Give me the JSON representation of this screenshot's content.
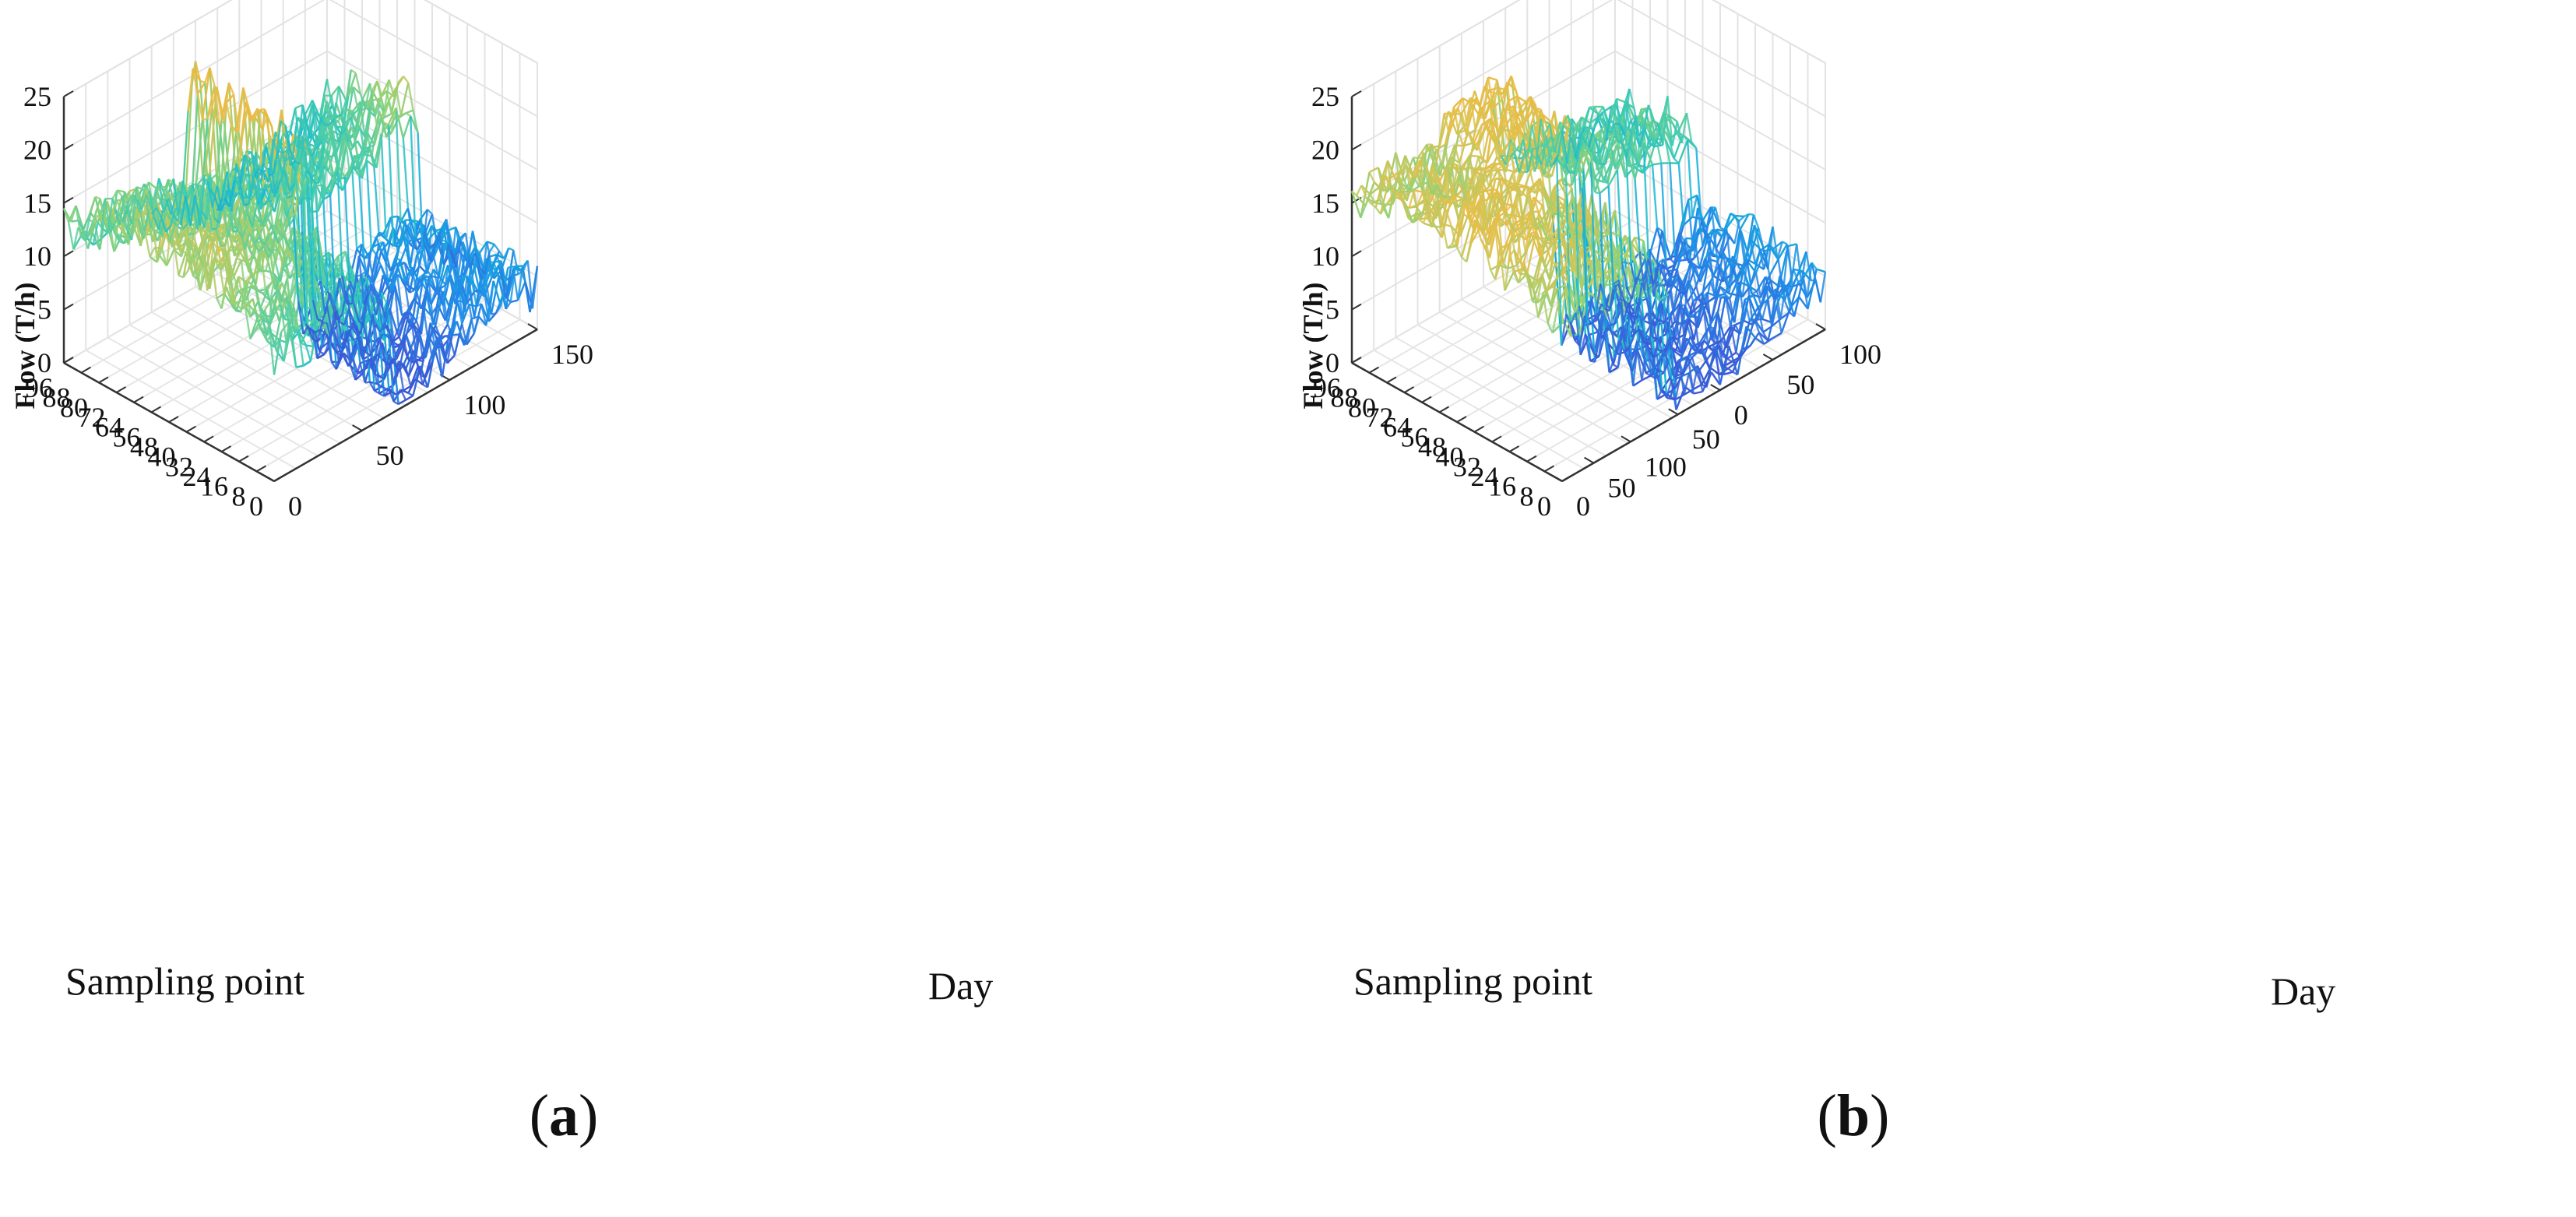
{
  "chart_data": [
    {
      "type": "surface3d",
      "panel_label": "a",
      "zlabel": "Flow (T/h)",
      "ylabel": "Sampling point",
      "xlabel": "Day",
      "zlim": [
        0,
        25
      ],
      "z_ticks": [
        "0",
        "5",
        "10",
        "15",
        "20",
        "25"
      ],
      "y_ticks": [
        "0",
        "8",
        "16",
        "24",
        "32",
        "40",
        "48",
        "56",
        "64",
        "72",
        "80",
        "88",
        "96"
      ],
      "x_ticks": [
        "0",
        "50",
        "100",
        "150"
      ],
      "x_range": [
        0,
        150
      ],
      "y_range": [
        0,
        96
      ],
      "grid": true,
      "surface_rows": 44,
      "surface_cols": 36,
      "colormap": [
        "#3a57d6",
        "#1f8fe8",
        "#13b6d6",
        "#3fcbb0",
        "#8fd27a",
        "#e0c24f",
        "#f1b53b"
      ]
    },
    {
      "type": "surface3d",
      "panel_label": "b",
      "zlabel": "Flow (T/h)",
      "ylabel": "Sampling point",
      "xlabel": "Day",
      "zlim": [
        0,
        25
      ],
      "z_ticks": [
        "0",
        "5",
        "10",
        "15",
        "20",
        "25"
      ],
      "y_ticks": [
        "0",
        "8",
        "16",
        "24",
        "32",
        "40",
        "48",
        "56",
        "64",
        "72",
        "80",
        "88",
        "96"
      ],
      "x_ticks": [
        "0",
        "50",
        "100",
        "50",
        "0",
        "50",
        "100"
      ],
      "x_range": [
        0,
        100
      ],
      "y_range": [
        0,
        96
      ],
      "grid": true,
      "surface_rows": 44,
      "surface_cols": 30,
      "colormap": [
        "#3a57d6",
        "#1f8fe8",
        "#13b6d6",
        "#3fcbb0",
        "#8fd27a",
        "#e0c24f",
        "#f1b53b"
      ]
    }
  ],
  "captions": [
    {
      "open": "(",
      "label": "a",
      "close": ")"
    },
    {
      "open": "(",
      "label": "b",
      "close": ")"
    }
  ]
}
